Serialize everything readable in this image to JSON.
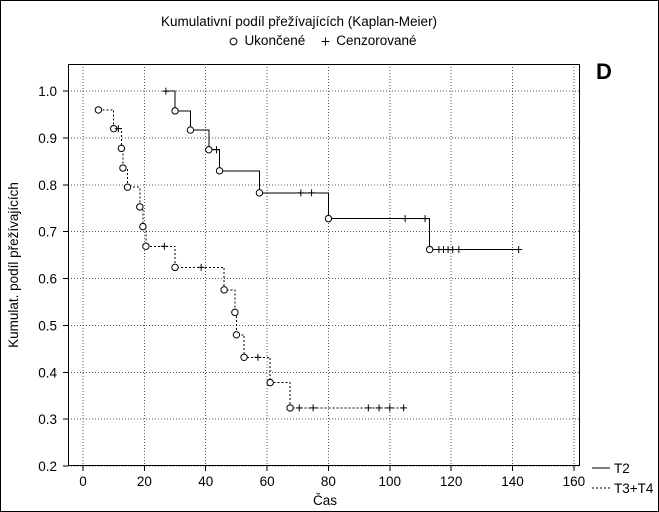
{
  "chart_data": {
    "type": "line",
    "title": "Kumulativní podíl přežívajících (Kaplan-Meier)",
    "marker_legend": {
      "event_icon": "circle-marker-icon",
      "event_label": "Ukončené",
      "censored_icon": "plus-marker-icon",
      "censored_label": "Cenzorované"
    },
    "panel_label": "D",
    "xlabel": "Čas",
    "ylabel": "Kumulat. podíl přežívajících",
    "xlim": [
      -4.9,
      162
    ],
    "ylim": [
      0.2,
      1.058
    ],
    "x_ticks": [
      0,
      20,
      40,
      60,
      80,
      100,
      120,
      140,
      160
    ],
    "x_tick_labels": [
      "0",
      "20",
      "40",
      "60",
      "80",
      "100",
      "120",
      "140",
      "160"
    ],
    "y_ticks": [
      0.2,
      0.3,
      0.4,
      0.5,
      0.6,
      0.7,
      0.8,
      0.9,
      1.0
    ],
    "y_tick_labels": [
      "0.2",
      "0.3",
      "0.4",
      "0.5",
      "0.6",
      "0.7",
      "0.8",
      "0.9",
      "1.0"
    ],
    "grid": true,
    "legend_position": "bottom-right",
    "series": [
      {
        "name": "T2",
        "line_style": "solid",
        "color": "#000000",
        "points": [
          {
            "t": 27,
            "s": 1.0,
            "kind": "censored"
          },
          {
            "t": 30,
            "s": 0.958,
            "kind": "event"
          },
          {
            "t": 35,
            "s": 0.917,
            "kind": "event"
          },
          {
            "t": 41,
            "s": 0.875,
            "kind": "event"
          },
          {
            "t": 43.5,
            "s": 0.875,
            "kind": "censored"
          },
          {
            "t": 44.5,
            "s": 0.83,
            "kind": "event"
          },
          {
            "t": 57.5,
            "s": 0.783,
            "kind": "event"
          },
          {
            "t": 71,
            "s": 0.783,
            "kind": "censored"
          },
          {
            "t": 74.5,
            "s": 0.783,
            "kind": "censored"
          },
          {
            "t": 80,
            "s": 0.728,
            "kind": "event"
          },
          {
            "t": 105,
            "s": 0.728,
            "kind": "censored"
          },
          {
            "t": 111.5,
            "s": 0.728,
            "kind": "censored"
          },
          {
            "t": 113,
            "s": 0.662,
            "kind": "event"
          },
          {
            "t": 116,
            "s": 0.662,
            "kind": "censored"
          },
          {
            "t": 117.5,
            "s": 0.662,
            "kind": "censored"
          },
          {
            "t": 119,
            "s": 0.662,
            "kind": "censored"
          },
          {
            "t": 120.5,
            "s": 0.662,
            "kind": "censored"
          },
          {
            "t": 122.5,
            "s": 0.662,
            "kind": "censored"
          },
          {
            "t": 142,
            "s": 0.662,
            "kind": "censored"
          }
        ]
      },
      {
        "name": "T3+T4",
        "line_style": "dotted",
        "color": "#000000",
        "points": [
          {
            "t": 5,
            "s": 0.96,
            "kind": "event"
          },
          {
            "t": 10,
            "s": 0.92,
            "kind": "event"
          },
          {
            "t": 11.5,
            "s": 0.92,
            "kind": "censored"
          },
          {
            "t": 12.5,
            "s": 0.878,
            "kind": "event"
          },
          {
            "t": 13,
            "s": 0.836,
            "kind": "event"
          },
          {
            "t": 14.5,
            "s": 0.795,
            "kind": "event"
          },
          {
            "t": 18.5,
            "s": 0.753,
            "kind": "event"
          },
          {
            "t": 19.5,
            "s": 0.711,
            "kind": "event"
          },
          {
            "t": 20.5,
            "s": 0.669,
            "kind": "event"
          },
          {
            "t": 26.5,
            "s": 0.669,
            "kind": "censored"
          },
          {
            "t": 30,
            "s": 0.624,
            "kind": "event"
          },
          {
            "t": 38.5,
            "s": 0.624,
            "kind": "censored"
          },
          {
            "t": 46,
            "s": 0.576,
            "kind": "event"
          },
          {
            "t": 49.5,
            "s": 0.528,
            "kind": "event"
          },
          {
            "t": 50,
            "s": 0.48,
            "kind": "event"
          },
          {
            "t": 52.5,
            "s": 0.432,
            "kind": "event"
          },
          {
            "t": 57,
            "s": 0.432,
            "kind": "censored"
          },
          {
            "t": 61,
            "s": 0.378,
            "kind": "event"
          },
          {
            "t": 67.5,
            "s": 0.324,
            "kind": "event"
          },
          {
            "t": 70.5,
            "s": 0.324,
            "kind": "censored"
          },
          {
            "t": 75,
            "s": 0.324,
            "kind": "censored"
          },
          {
            "t": 93,
            "s": 0.324,
            "kind": "censored"
          },
          {
            "t": 96.5,
            "s": 0.324,
            "kind": "censored"
          },
          {
            "t": 100,
            "s": 0.324,
            "kind": "censored"
          },
          {
            "t": 104.5,
            "s": 0.324,
            "kind": "censored"
          }
        ]
      }
    ]
  }
}
